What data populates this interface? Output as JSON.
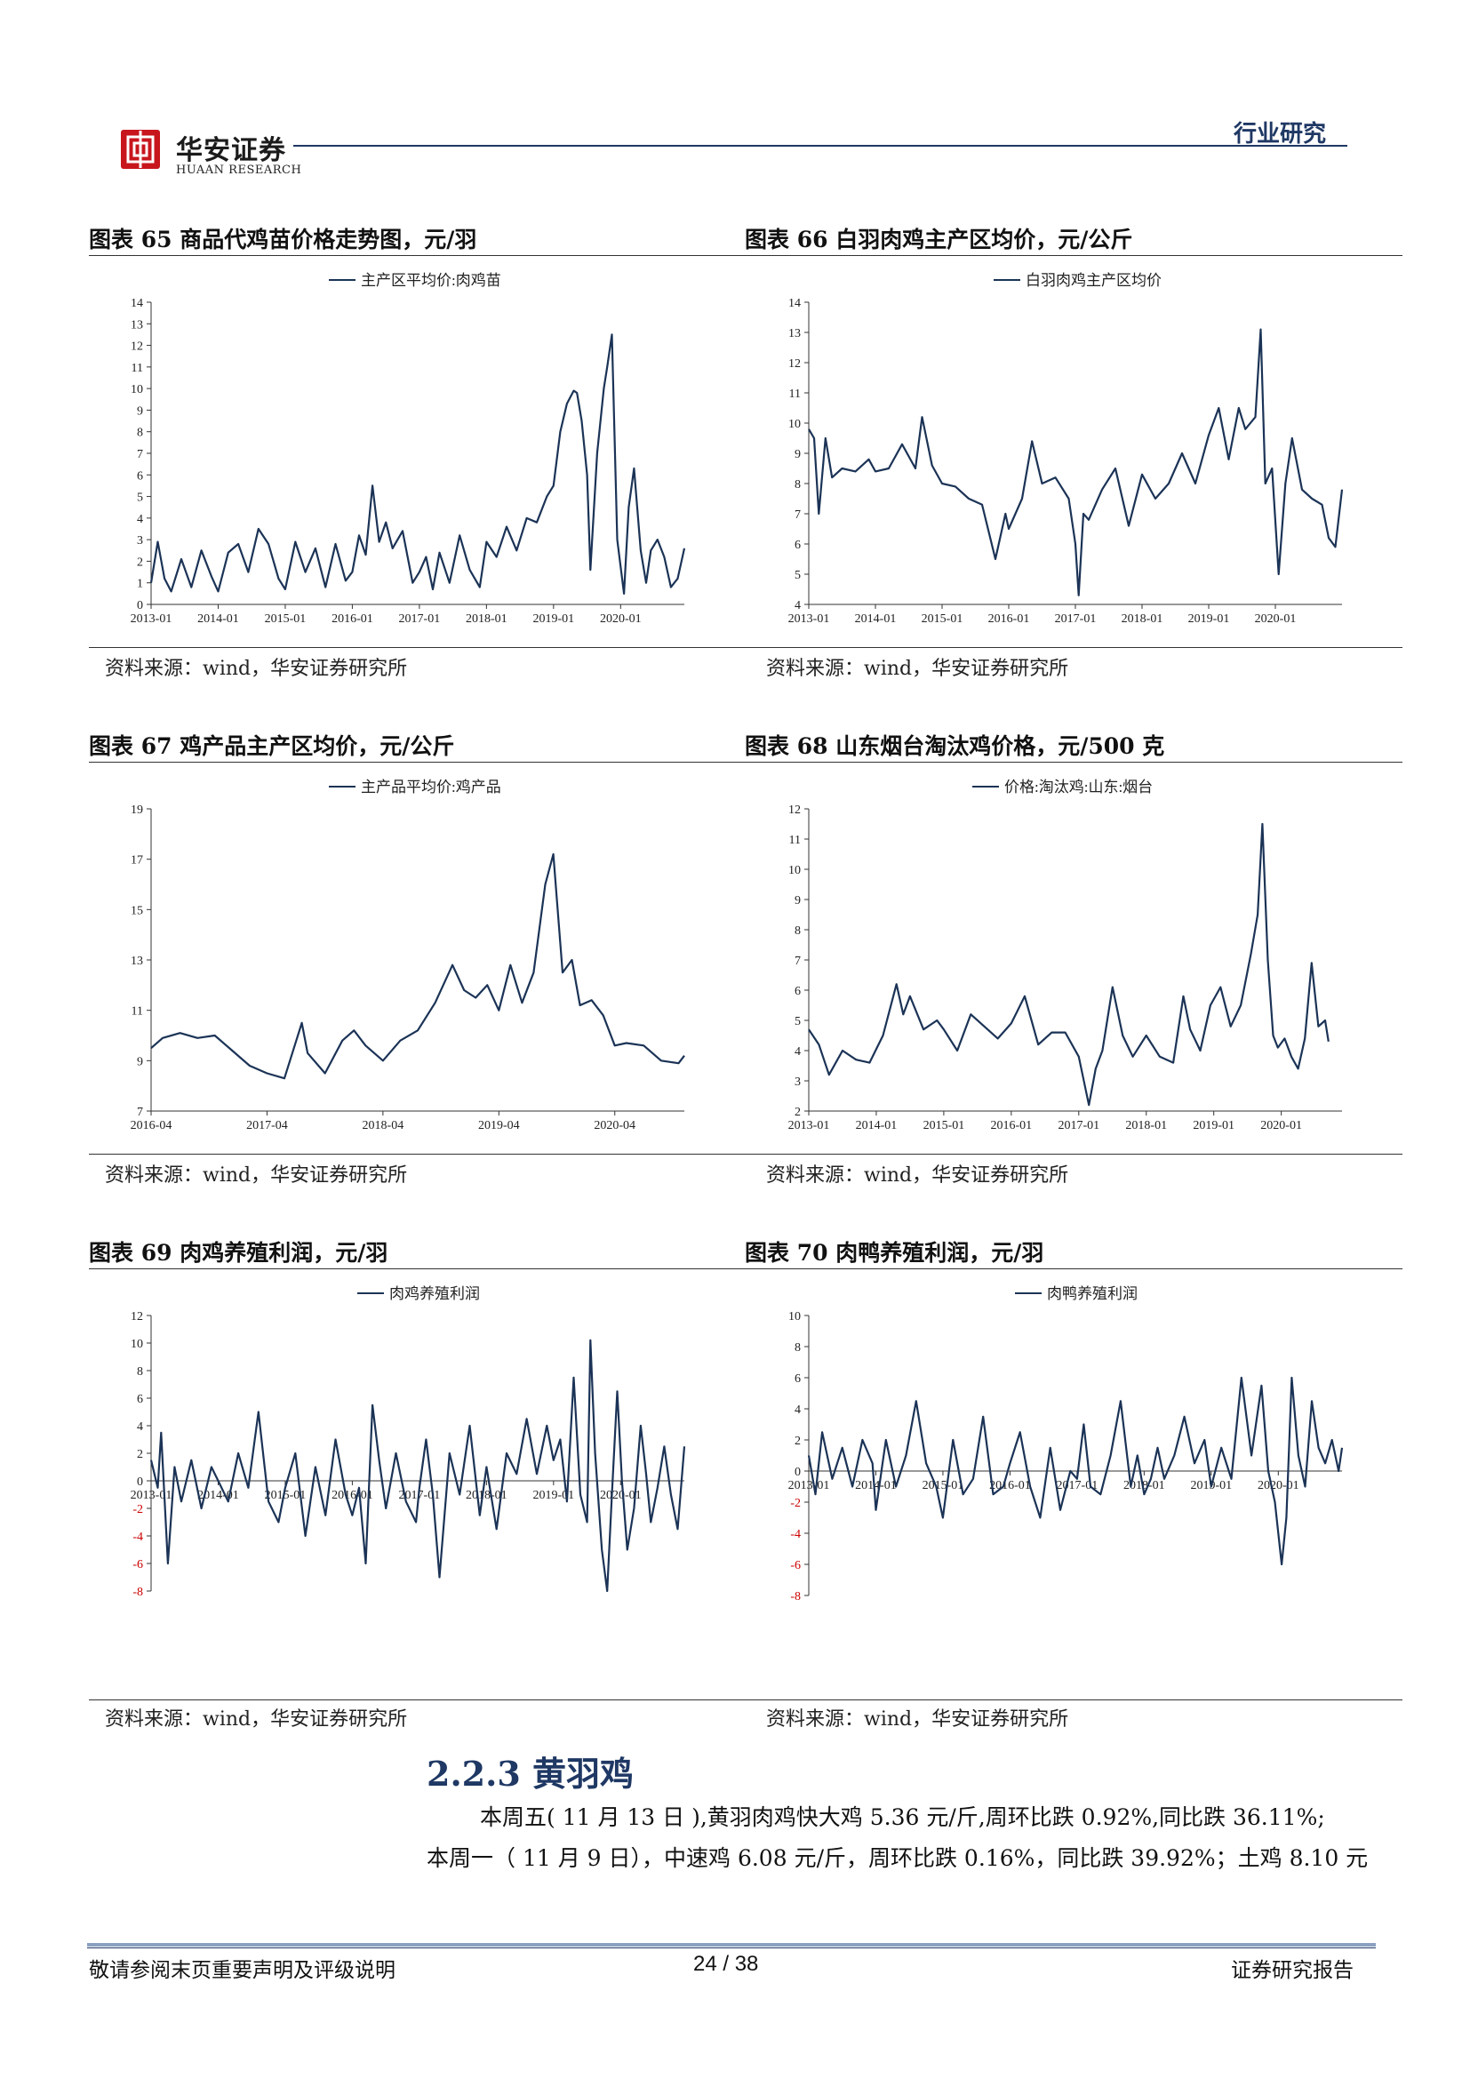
{
  "header": {
    "logo_cn": "华安证券",
    "logo_en": "HUAAN RESEARCH",
    "category": "行业研究"
  },
  "figures": [
    {
      "title": "图表 65 商品代鸡苗价格走势图，元/羽",
      "source": "资料来源：wind，华安证券研究所"
    },
    {
      "title": "图表 66 白羽肉鸡主产区均价，元/公斤",
      "source": "资料来源：wind，华安证券研究所"
    },
    {
      "title": "图表 67 鸡产品主产区均价，元/公斤",
      "source": "资料来源：wind，华安证券研究所"
    },
    {
      "title": "图表 68 山东烟台淘汰鸡价格，元/500 克",
      "source": "资料来源：wind，华安证券研究所"
    },
    {
      "title": "图表 69 肉鸡养殖利润，元/羽",
      "source": "资料来源：wind，华安证券研究所"
    },
    {
      "title": "图表 70 肉鸭养殖利润，元/羽",
      "source": "资料来源：wind，华安证券研究所"
    }
  ],
  "section": {
    "heading": "2.2.3 黄羽鸡",
    "line1": "本周五( 11 月 13 日 ),黄羽肉鸡快大鸡 5.36 元/斤,周环比跌 0.92%,同比跌 36.11%;",
    "line2": "本周一（ 11 月 9 日），中速鸡 6.08 元/斤，周环比跌 0.16%，同比跌 39.92%；土鸡 8.10 元"
  },
  "footer": {
    "left": "敬请参阅末页重要声明及评级说明",
    "page": "24 / 38",
    "right": "证券研究报告"
  },
  "colors": {
    "line": "#1b3356",
    "axis": "#333333",
    "negative": "#cc0000",
    "accent": "#1f3864"
  },
  "chart_data": [
    {
      "type": "line",
      "legend": "主产区平均价:肉鸡苗",
      "ylim": [
        0,
        14
      ],
      "yticks": [
        0,
        1,
        2,
        3,
        4,
        5,
        6,
        7,
        8,
        9,
        10,
        11,
        12,
        13,
        14
      ],
      "xticks": [
        "2013-01",
        "2014-01",
        "2015-01",
        "2016-01",
        "2017-01",
        "2018-01",
        "2019-01",
        "2020-01"
      ],
      "x_start": 2013.0,
      "x_end": 2020.95,
      "series": [
        {
          "x": [
            2013.0,
            2013.1,
            2013.2,
            2013.3,
            2013.45,
            2013.6,
            2013.75,
            2013.9,
            2014.0,
            2014.15,
            2014.3,
            2014.45,
            2014.6,
            2014.75,
            2014.9,
            2015.0,
            2015.15,
            2015.3,
            2015.45,
            2015.6,
            2015.75,
            2015.9,
            2016.0,
            2016.1,
            2016.2,
            2016.3,
            2016.4,
            2016.5,
            2016.6,
            2016.75,
            2016.9,
            2017.0,
            2017.1,
            2017.2,
            2017.3,
            2017.45,
            2017.6,
            2017.75,
            2017.9,
            2018.0,
            2018.15,
            2018.3,
            2018.45,
            2018.6,
            2018.75,
            2018.9,
            2019.0,
            2019.1,
            2019.2,
            2019.3,
            2019.35,
            2019.42,
            2019.5,
            2019.55,
            2019.65,
            2019.75,
            2019.8,
            2019.87,
            2019.95,
            2020.05,
            2020.12,
            2020.2,
            2020.3,
            2020.38,
            2020.45,
            2020.55,
            2020.65,
            2020.75,
            2020.85,
            2020.95
          ],
          "values": [
            1.0,
            2.9,
            1.2,
            0.6,
            2.1,
            0.8,
            2.5,
            1.3,
            0.6,
            2.4,
            2.8,
            1.5,
            3.5,
            2.8,
            1.2,
            0.7,
            2.9,
            1.5,
            2.6,
            0.8,
            2.8,
            1.1,
            1.5,
            3.2,
            2.3,
            5.5,
            2.9,
            3.8,
            2.6,
            3.4,
            1.0,
            1.5,
            2.2,
            0.7,
            2.4,
            1.0,
            3.2,
            1.6,
            0.8,
            2.9,
            2.2,
            3.6,
            2.5,
            4.0,
            3.8,
            5.0,
            5.5,
            8.0,
            9.3,
            9.9,
            9.8,
            8.5,
            6.0,
            1.6,
            7.0,
            10.0,
            11.0,
            12.5,
            3.0,
            0.5,
            4.5,
            6.3,
            2.5,
            1.0,
            2.5,
            3.0,
            2.2,
            0.8,
            1.2,
            2.6
          ]
        }
      ]
    },
    {
      "type": "line",
      "legend": "白羽肉鸡主产区均价",
      "ylim": [
        4,
        14
      ],
      "yticks": [
        4,
        5,
        6,
        7,
        8,
        9,
        10,
        11,
        12,
        13,
        14
      ],
      "xticks": [
        "2013-01",
        "2014-01",
        "2015-01",
        "2016-01",
        "2017-01",
        "2018-01",
        "2019-01",
        "2020-01"
      ],
      "x_start": 2013.0,
      "x_end": 2021.0,
      "series": [
        {
          "x": [
            2013.0,
            2013.08,
            2013.15,
            2013.25,
            2013.35,
            2013.5,
            2013.7,
            2013.9,
            2014.0,
            2014.2,
            2014.4,
            2014.6,
            2014.7,
            2014.85,
            2015.0,
            2015.2,
            2015.4,
            2015.6,
            2015.8,
            2015.95,
            2016.0,
            2016.2,
            2016.35,
            2016.5,
            2016.7,
            2016.9,
            2017.0,
            2017.05,
            2017.12,
            2017.2,
            2017.4,
            2017.6,
            2017.8,
            2018.0,
            2018.2,
            2018.4,
            2018.6,
            2018.8,
            2019.0,
            2019.15,
            2019.3,
            2019.45,
            2019.55,
            2019.7,
            2019.78,
            2019.85,
            2019.95,
            2020.05,
            2020.15,
            2020.25,
            2020.4,
            2020.55,
            2020.7,
            2020.8,
            2020.9,
            2021.0
          ],
          "values": [
            9.8,
            9.5,
            7.0,
            9.5,
            8.2,
            8.5,
            8.4,
            8.8,
            8.4,
            8.5,
            9.3,
            8.5,
            10.2,
            8.6,
            8.0,
            7.9,
            7.5,
            7.3,
            5.5,
            7.0,
            6.5,
            7.5,
            9.4,
            8.0,
            8.2,
            7.5,
            6.0,
            4.3,
            7.0,
            6.8,
            7.8,
            8.5,
            6.6,
            8.3,
            7.5,
            8.0,
            9.0,
            8.0,
            9.6,
            10.5,
            8.8,
            10.5,
            9.8,
            10.2,
            13.1,
            8.0,
            8.5,
            5.0,
            8.0,
            9.5,
            7.8,
            7.5,
            7.3,
            6.2,
            5.9,
            7.8
          ]
        }
      ]
    },
    {
      "type": "line",
      "legend": "主产品平均价:鸡产品",
      "ylim": [
        7,
        19
      ],
      "yticks": [
        7,
        9,
        11,
        13,
        15,
        17,
        19
      ],
      "xticks": [
        "2016-04",
        "2017-04",
        "2018-04",
        "2019-04",
        "2020-04"
      ],
      "x_start": 2016.25,
      "x_end": 2020.85,
      "series": [
        {
          "x": [
            2016.25,
            2016.35,
            2016.5,
            2016.65,
            2016.8,
            2016.95,
            2017.1,
            2017.25,
            2017.4,
            2017.55,
            2017.6,
            2017.75,
            2017.9,
            2018.0,
            2018.1,
            2018.25,
            2018.4,
            2018.55,
            2018.7,
            2018.85,
            2018.95,
            2019.05,
            2019.15,
            2019.25,
            2019.35,
            2019.45,
            2019.55,
            2019.65,
            2019.72,
            2019.8,
            2019.88,
            2019.95,
            2020.05,
            2020.15,
            2020.25,
            2020.35,
            2020.5,
            2020.65,
            2020.8,
            2020.85
          ],
          "values": [
            9.5,
            9.9,
            10.1,
            9.9,
            10.0,
            9.4,
            8.8,
            8.5,
            8.3,
            10.5,
            9.3,
            8.5,
            9.8,
            10.2,
            9.6,
            9.0,
            9.8,
            10.2,
            11.3,
            12.8,
            11.8,
            11.5,
            12.0,
            11.0,
            12.8,
            11.3,
            12.5,
            16.0,
            17.2,
            12.5,
            13.0,
            11.2,
            11.4,
            10.8,
            9.6,
            9.7,
            9.6,
            9.0,
            8.9,
            9.2
          ]
        }
      ]
    },
    {
      "type": "line",
      "legend": "价格:淘汰鸡:山东:烟台",
      "ylim": [
        2,
        12
      ],
      "yticks": [
        2,
        3,
        4,
        5,
        6,
        7,
        8,
        9,
        10,
        11,
        12
      ],
      "xticks": [
        "2013-01",
        "2014-01",
        "2015-01",
        "2016-01",
        "2017-01",
        "2018-01",
        "2019-01",
        "2020-01"
      ],
      "x_start": 2013.0,
      "x_end": 2020.9,
      "series": [
        {
          "x": [
            2013.0,
            2013.15,
            2013.3,
            2013.5,
            2013.7,
            2013.9,
            2014.1,
            2014.3,
            2014.4,
            2014.5,
            2014.7,
            2014.9,
            2015.0,
            2015.2,
            2015.4,
            2015.6,
            2015.8,
            2016.0,
            2016.2,
            2016.4,
            2016.6,
            2016.8,
            2017.0,
            2017.15,
            2017.25,
            2017.35,
            2017.5,
            2017.65,
            2017.8,
            2018.0,
            2018.2,
            2018.4,
            2018.55,
            2018.65,
            2018.8,
            2018.95,
            2019.1,
            2019.25,
            2019.4,
            2019.55,
            2019.65,
            2019.72,
            2019.8,
            2019.88,
            2019.95,
            2020.05,
            2020.15,
            2020.25,
            2020.35,
            2020.45,
            2020.55,
            2020.65,
            2020.7
          ],
          "values": [
            4.7,
            4.2,
            3.2,
            4.0,
            3.7,
            3.6,
            4.5,
            6.2,
            5.2,
            5.8,
            4.7,
            5.0,
            4.7,
            4.0,
            5.2,
            4.8,
            4.4,
            4.9,
            5.8,
            4.2,
            4.6,
            4.6,
            3.8,
            2.2,
            3.4,
            4.0,
            6.1,
            4.5,
            3.8,
            4.5,
            3.8,
            3.6,
            5.8,
            4.7,
            4.0,
            5.5,
            6.1,
            4.8,
            5.5,
            7.2,
            8.5,
            11.5,
            7.0,
            4.5,
            4.1,
            4.4,
            3.8,
            3.4,
            4.4,
            6.9,
            4.8,
            5.0,
            4.3
          ]
        }
      ]
    },
    {
      "type": "line",
      "legend": "肉鸡养殖利润",
      "ylim": [
        -8,
        12
      ],
      "yticks": [
        -8,
        -6,
        -4,
        -2,
        0,
        2,
        4,
        6,
        8,
        10,
        12
      ],
      "xticks": [
        "2013-01",
        "2014-01",
        "2015-01",
        "2016-01",
        "2017-01",
        "2018-01",
        "2019-01",
        "2020-01"
      ],
      "x_start": 2013.0,
      "x_end": 2020.95,
      "series": [
        {
          "x": [
            2013.0,
            2013.1,
            2013.15,
            2013.25,
            2013.35,
            2013.45,
            2013.6,
            2013.75,
            2013.9,
            2014.0,
            2014.15,
            2014.3,
            2014.45,
            2014.6,
            2014.75,
            2014.9,
            2015.0,
            2015.15,
            2015.3,
            2015.45,
            2015.6,
            2015.75,
            2015.9,
            2016.0,
            2016.1,
            2016.2,
            2016.3,
            2016.4,
            2016.5,
            2016.65,
            2016.8,
            2016.95,
            2017.0,
            2017.1,
            2017.2,
            2017.3,
            2017.45,
            2017.6,
            2017.75,
            2017.9,
            2018.0,
            2018.15,
            2018.3,
            2018.45,
            2018.6,
            2018.75,
            2018.9,
            2019.0,
            2019.1,
            2019.2,
            2019.3,
            2019.4,
            2019.5,
            2019.55,
            2019.62,
            2019.72,
            2019.8,
            2019.87,
            2019.95,
            2020.02,
            2020.1,
            2020.2,
            2020.3,
            2020.38,
            2020.45,
            2020.55,
            2020.65,
            2020.75,
            2020.85,
            2020.95
          ],
          "values": [
            1.5,
            -0.5,
            3.5,
            -6.0,
            1.0,
            -1.5,
            1.5,
            -2.0,
            1.0,
            0.0,
            -1.5,
            2.0,
            -0.5,
            5.0,
            -1.5,
            -3.0,
            -0.5,
            2.0,
            -4.0,
            1.0,
            -2.5,
            3.0,
            -1.0,
            -2.5,
            -0.5,
            -6.0,
            5.5,
            1.5,
            -2.0,
            2.0,
            -1.5,
            -3.0,
            -0.5,
            3.0,
            -1.0,
            -7.0,
            2.0,
            -1.0,
            4.0,
            -2.5,
            1.0,
            -3.5,
            2.0,
            0.5,
            4.5,
            0.5,
            4.0,
            1.5,
            3.0,
            -1.5,
            7.5,
            -1.0,
            -3.0,
            10.2,
            2.0,
            -5.0,
            -8.0,
            -1.0,
            6.5,
            0.0,
            -5.0,
            -2.0,
            4.0,
            0.5,
            -3.0,
            -0.5,
            2.5,
            -1.0,
            -3.5,
            2.5
          ]
        }
      ]
    },
    {
      "type": "line",
      "legend": "肉鸭养殖利润",
      "ylim": [
        -8,
        10
      ],
      "yticks": [
        -8,
        -6,
        -4,
        -2,
        0,
        2,
        4,
        6,
        8,
        10
      ],
      "xticks": [
        "2013-01",
        "2014-01",
        "2015-01",
        "2016-01",
        "2017-01",
        "2018-01",
        "2019-01",
        "2020-01"
      ],
      "x_start": 2013.0,
      "x_end": 2020.95,
      "series": [
        {
          "x": [
            2013.0,
            2013.1,
            2013.2,
            2013.35,
            2013.5,
            2013.65,
            2013.8,
            2013.95,
            2014.0,
            2014.15,
            2014.3,
            2014.45,
            2014.6,
            2014.75,
            2014.9,
            2015.0,
            2015.15,
            2015.3,
            2015.45,
            2015.6,
            2015.75,
            2015.9,
            2016.0,
            2016.15,
            2016.3,
            2016.45,
            2016.6,
            2016.75,
            2016.9,
            2017.0,
            2017.1,
            2017.2,
            2017.35,
            2017.5,
            2017.65,
            2017.8,
            2017.9,
            2018.0,
            2018.1,
            2018.2,
            2018.3,
            2018.45,
            2018.6,
            2018.75,
            2018.9,
            2019.0,
            2019.15,
            2019.3,
            2019.45,
            2019.6,
            2019.75,
            2019.85,
            2019.95,
            2020.05,
            2020.12,
            2020.2,
            2020.3,
            2020.4,
            2020.5,
            2020.6,
            2020.7,
            2020.8,
            2020.9,
            2020.95
          ],
          "values": [
            1.0,
            -1.5,
            2.5,
            -0.5,
            1.5,
            -1.0,
            2.0,
            0.5,
            -2.5,
            2.0,
            -1.0,
            1.0,
            4.5,
            0.5,
            -1.0,
            -3.0,
            2.0,
            -1.5,
            -0.5,
            3.5,
            -1.5,
            -1.0,
            0.5,
            2.5,
            -1.0,
            -3.0,
            1.5,
            -2.5,
            0.0,
            -0.5,
            3.0,
            -1.0,
            -1.5,
            1.0,
            4.5,
            -1.0,
            1.0,
            -1.5,
            -0.5,
            1.5,
            -0.5,
            1.0,
            3.5,
            0.5,
            2.0,
            -1.0,
            1.5,
            -0.5,
            6.0,
            1.0,
            5.5,
            0.0,
            -2.0,
            -6.0,
            -3.0,
            6.0,
            1.0,
            -1.0,
            4.5,
            1.5,
            0.5,
            2.0,
            0.0,
            1.5
          ]
        }
      ]
    }
  ]
}
